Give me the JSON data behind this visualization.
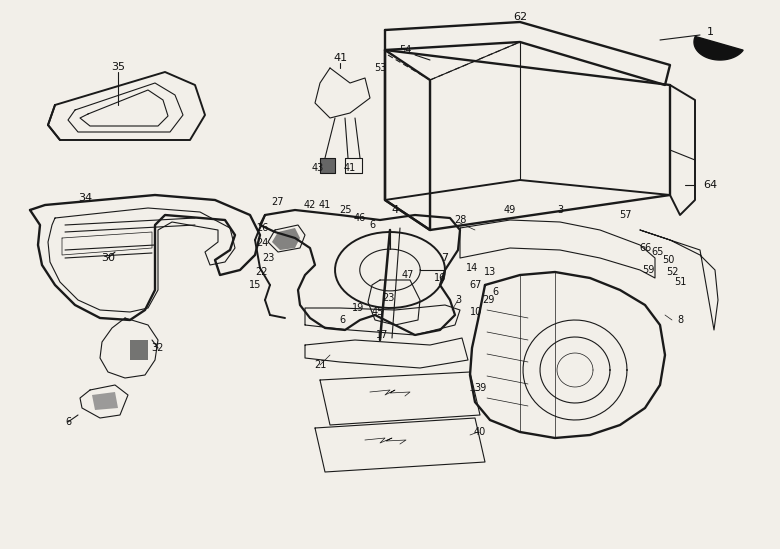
{
  "bg_color": "#f0ede8",
  "line_color": "#2a2a2a",
  "fig_width": 7.8,
  "fig_height": 5.49,
  "dpi": 100,
  "image_b64": ""
}
